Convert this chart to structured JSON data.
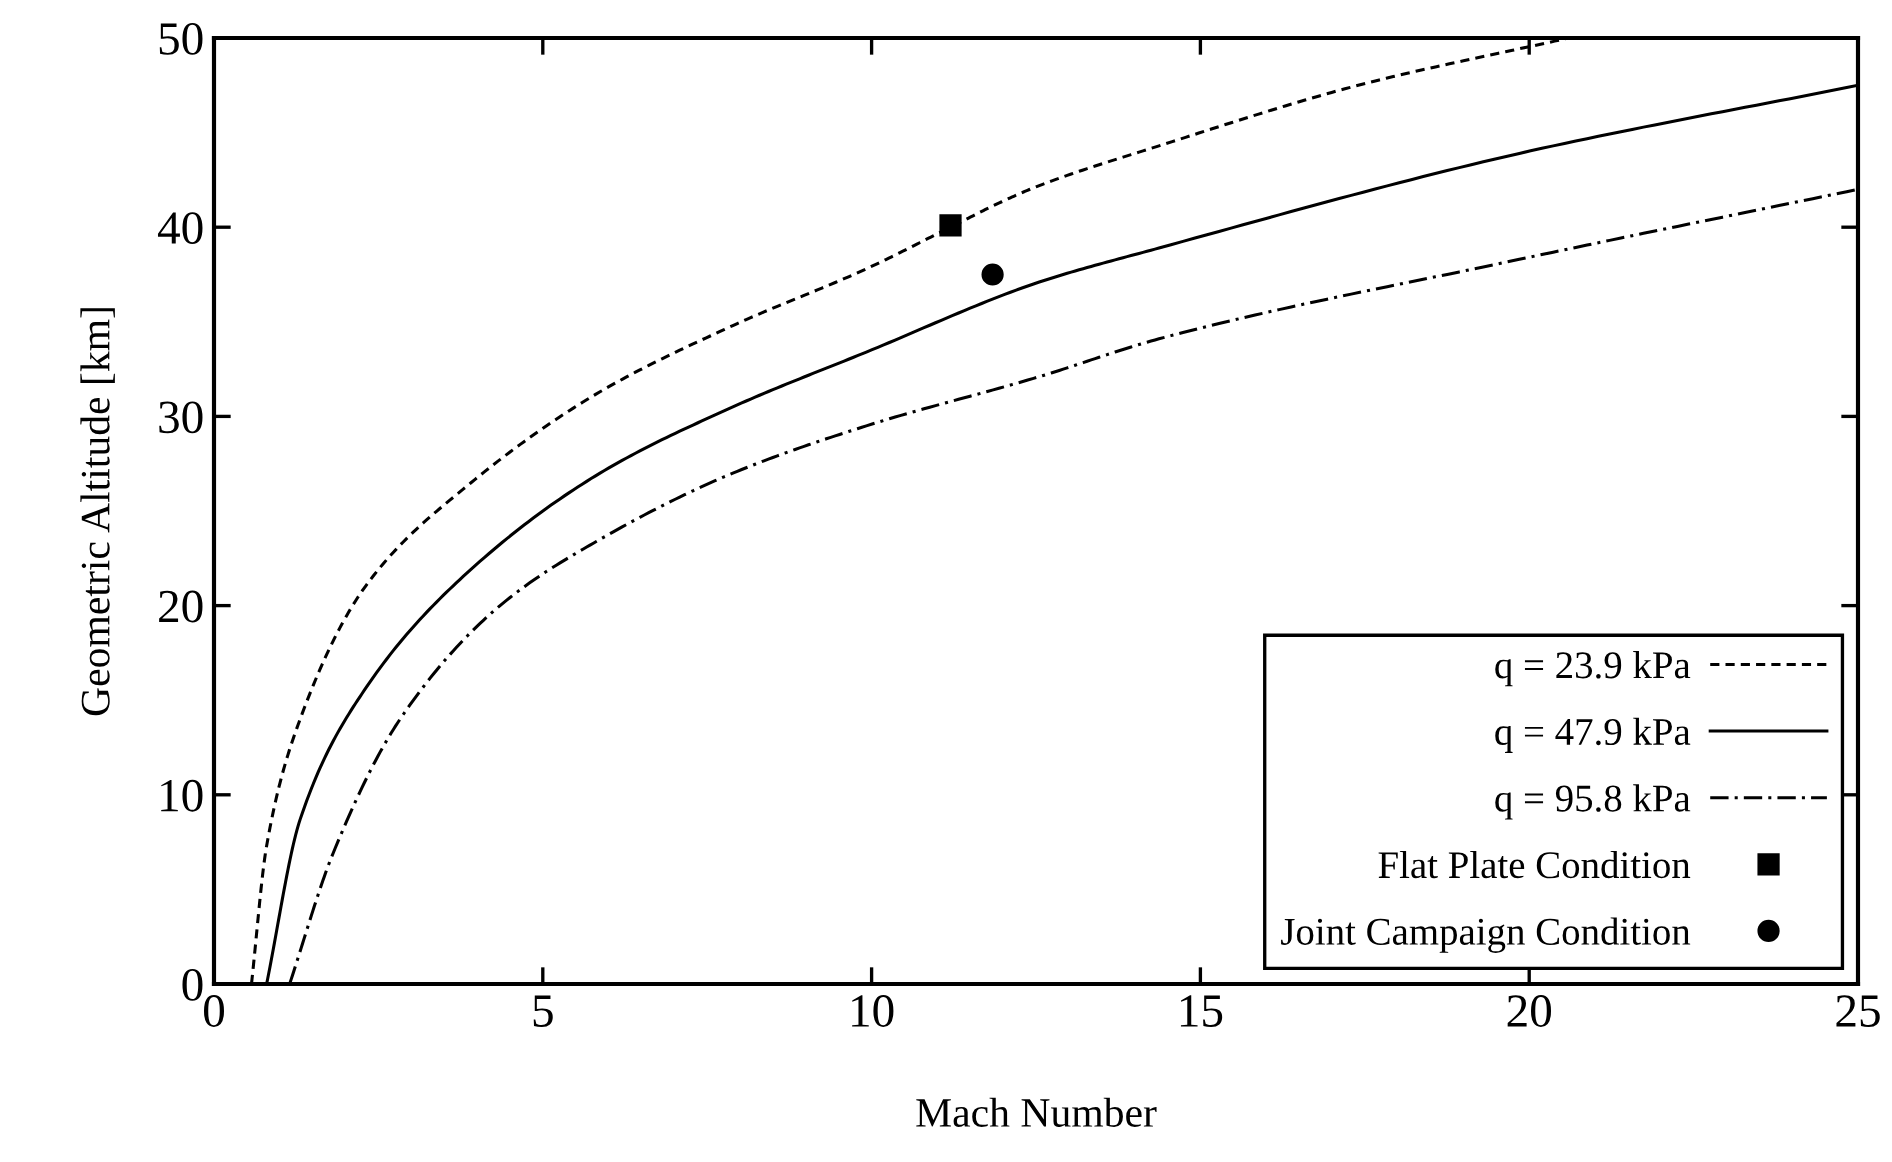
{
  "chart_data": {
    "type": "line",
    "xlabel": "Mach Number",
    "ylabel": "Geometric Altitude [km]",
    "xlim": [
      0,
      25
    ],
    "ylim": [
      0,
      50
    ],
    "xticks": [
      0,
      5,
      10,
      15,
      20,
      25
    ],
    "yticks": [
      0,
      10,
      20,
      30,
      40,
      50
    ],
    "grid": false,
    "legend": "bottom right",
    "series": [
      {
        "name": "q = 23.9 kPa",
        "color": "#000000",
        "line_style": "dashed",
        "marker": "none",
        "x": [
          0.57,
          0.8,
          1.31,
          2.32,
          3.84,
          5.87,
          7.89,
          9.92,
          11.2,
          11.95,
          12.55,
          14.37,
          17.4,
          20.6
        ],
        "values": [
          0,
          7.3,
          14.0,
          21.1,
          26.3,
          31.3,
          34.8,
          37.8,
          40.0,
          41.3,
          42.2,
          44.3,
          47.5,
          50.0
        ]
      },
      {
        "name": "q = 47.9 kPa",
        "color": "#000000",
        "line_style": "solid",
        "marker": "none",
        "x": [
          0.8,
          1.31,
          2.32,
          3.84,
          5.87,
          7.89,
          9.92,
          12.55,
          14.37,
          19.85,
          25.0
        ],
        "values": [
          0,
          8.7,
          15.7,
          21.7,
          27.0,
          30.5,
          33.4,
          37.1,
          38.9,
          43.9,
          47.5
        ]
      },
      {
        "name": "q = 95.8 kPa",
        "color": "#000000",
        "line_style": "dashdot",
        "marker": "none",
        "x": [
          1.15,
          1.81,
          2.83,
          4.35,
          5.87,
          7.89,
          9.92,
          12.55,
          14.37,
          19.85,
          25.0
        ],
        "values": [
          0,
          6.9,
          14.0,
          20.0,
          23.5,
          27.0,
          29.5,
          32.1,
          34.1,
          38.3,
          42.0
        ]
      },
      {
        "name": "Flat Plate Condition",
        "type": "scatter",
        "color": "#000000",
        "marker": "square",
        "x": [
          11.2
        ],
        "values": [
          40.1
        ]
      },
      {
        "name": "Joint Campaign Condition",
        "type": "scatter",
        "color": "#000000",
        "marker": "circle",
        "x": [
          11.84
        ],
        "values": [
          37.5
        ]
      }
    ]
  }
}
